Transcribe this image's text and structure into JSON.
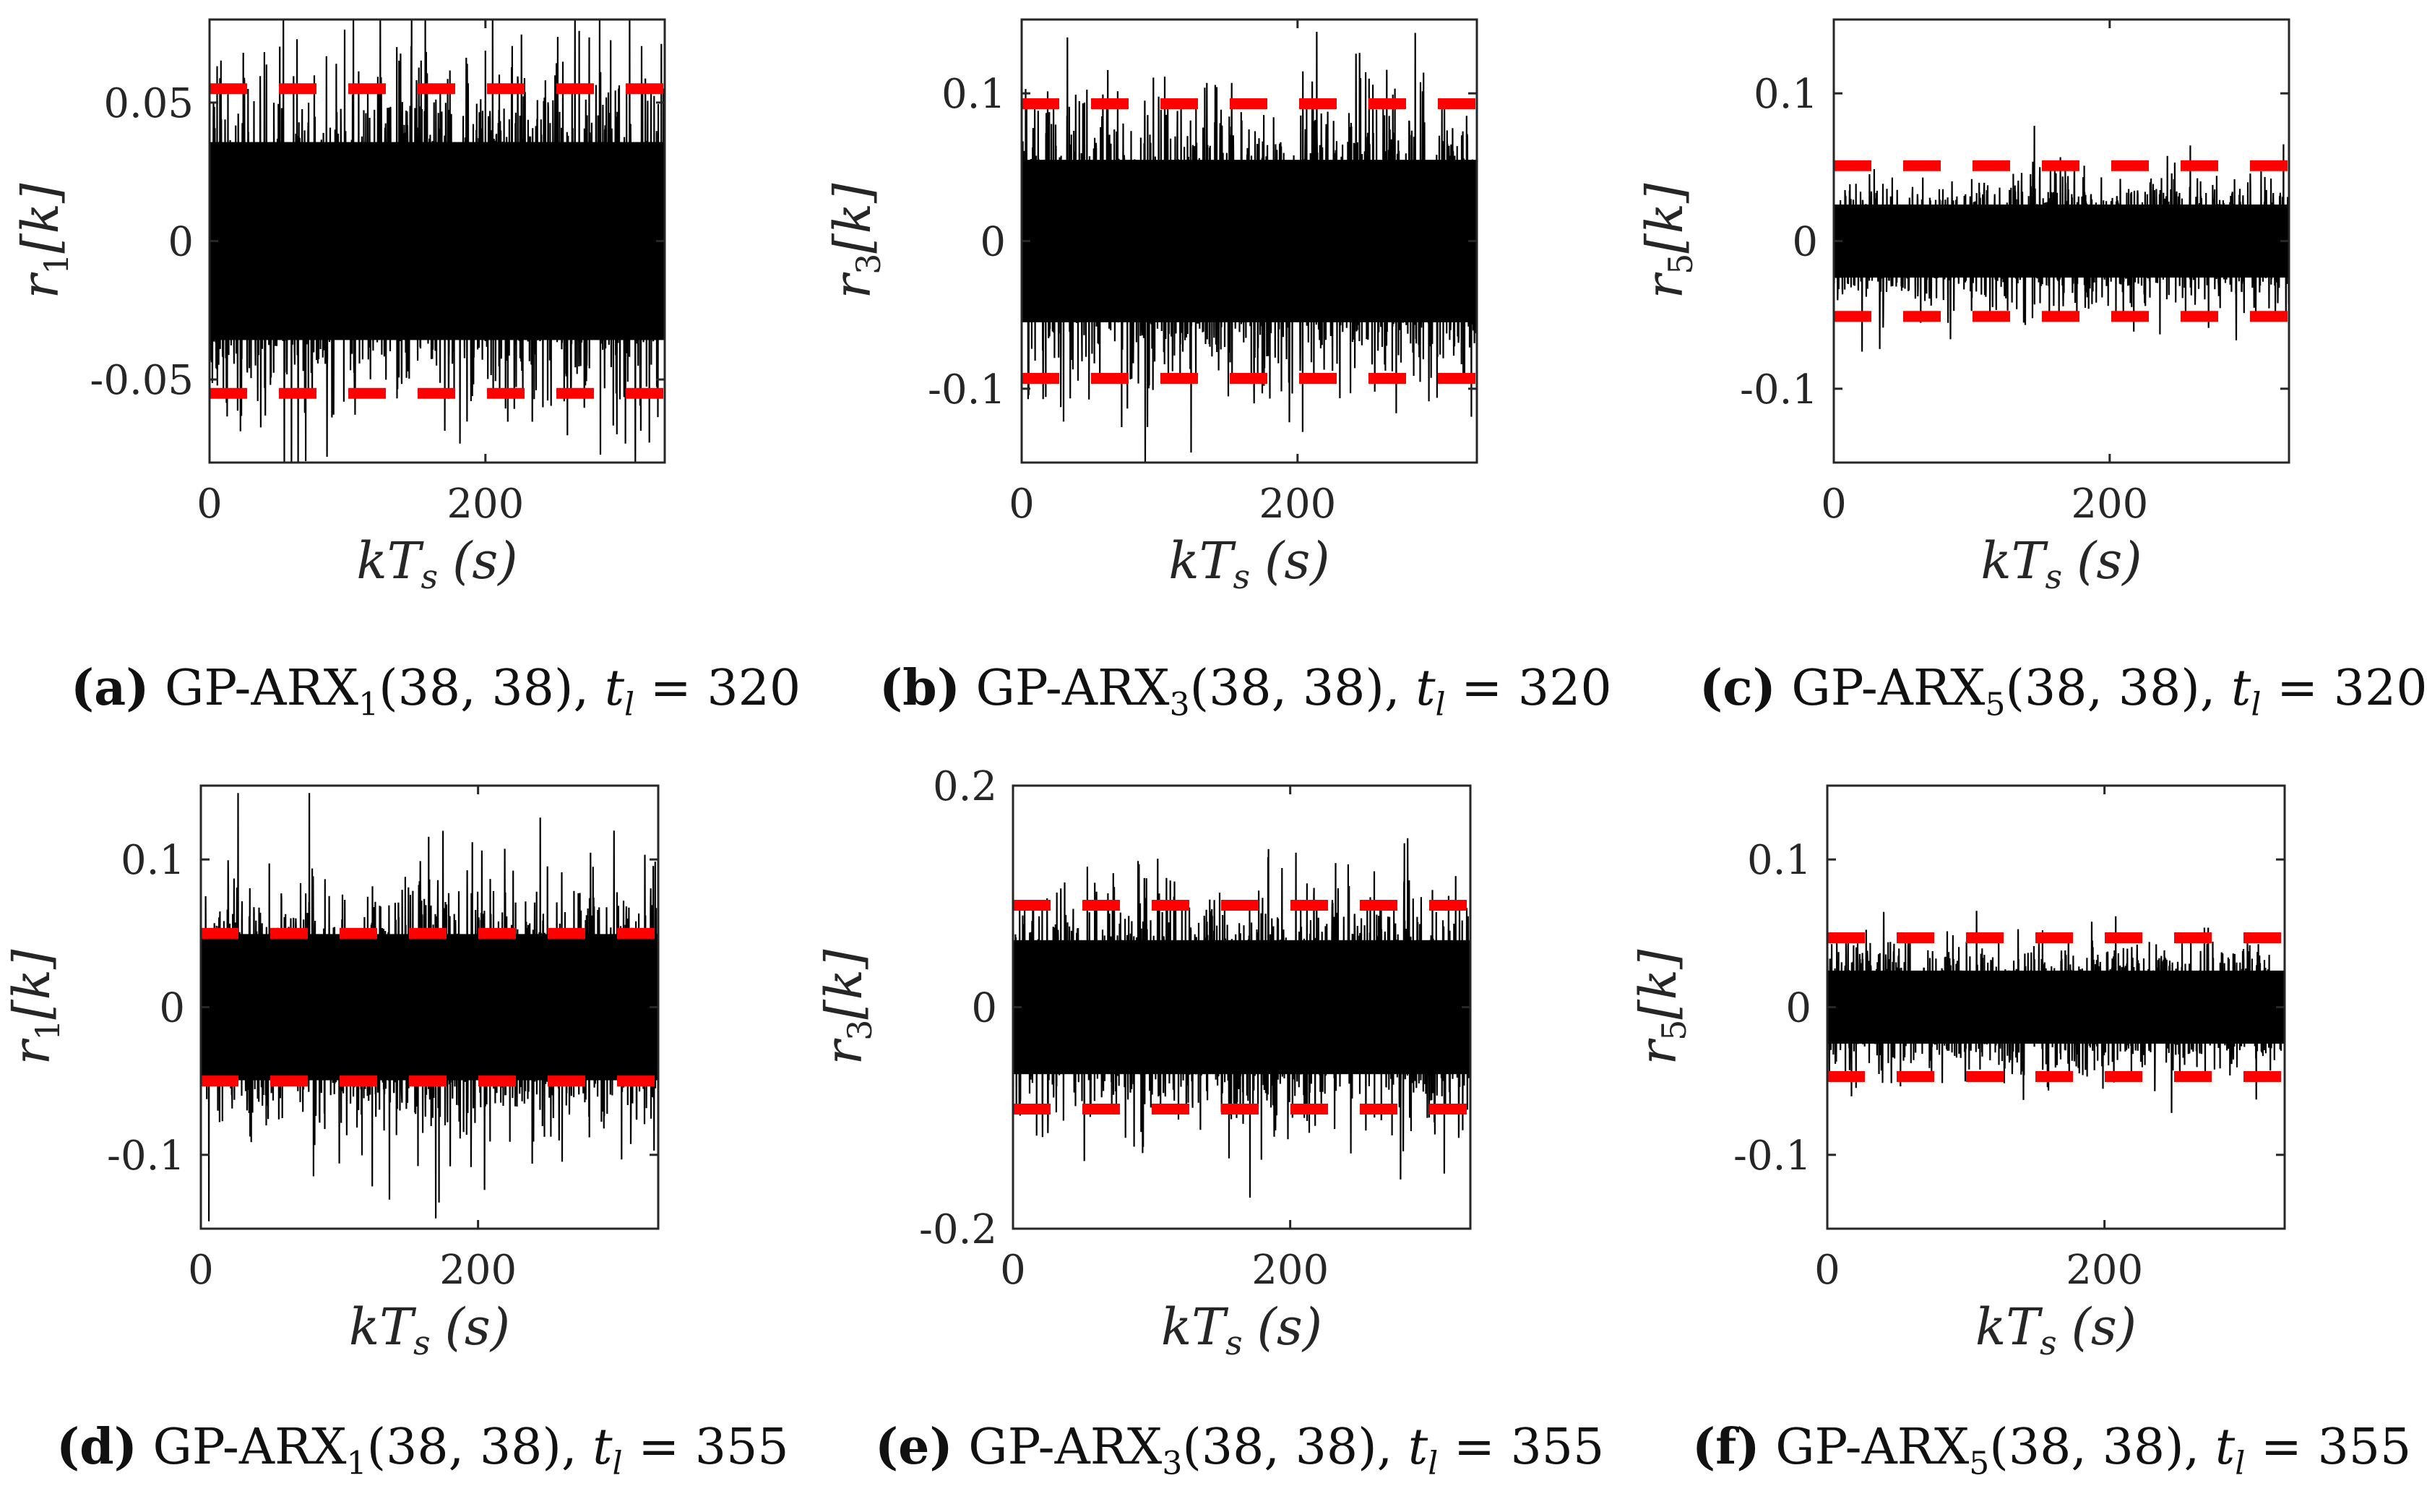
{
  "chart_data": [
    {
      "type": "line",
      "id": "a",
      "ylabel_var": "r",
      "ylabel_sub": "1",
      "ylabel_arg": "[k]",
      "xlabel_main": "kT",
      "xlabel_sub": "s",
      "xlabel_unit": "(s)",
      "xlim": [
        0,
        330
      ],
      "ylim": [
        -0.08,
        0.08
      ],
      "xticks": [
        0,
        200
      ],
      "xtick_labels": [
        "0",
        "200"
      ],
      "yticks": [
        0.05,
        0,
        -0.05
      ],
      "ytick_labels": [
        "0.05",
        "0",
        "-0.05"
      ],
      "series": [
        {
          "name": "residual",
          "color": "#000000",
          "band": 0.065,
          "peak": 0.082,
          "seed": 11
        },
        {
          "name": "threshold",
          "color": "#ff0000",
          "style": "dashed",
          "values": [
            0.055,
            -0.055
          ]
        }
      ],
      "caption": {
        "letter": "(a)",
        "model": "GP-ARX",
        "sub": "1",
        "args": "(38, 38),",
        "t": "t",
        "tsub": "l",
        "eq": "= 320"
      }
    },
    {
      "type": "line",
      "id": "b",
      "ylabel_var": "r",
      "ylabel_sub": "3",
      "ylabel_arg": "[k]",
      "xlabel_main": "kT",
      "xlabel_sub": "s",
      "xlabel_unit": "(s)",
      "xlim": [
        0,
        330
      ],
      "ylim": [
        -0.15,
        0.15
      ],
      "xticks": [
        0,
        200
      ],
      "xtick_labels": [
        "0",
        "200"
      ],
      "yticks": [
        0.1,
        0,
        -0.1
      ],
      "ytick_labels": [
        "0.1",
        "0",
        "-0.1"
      ],
      "series": [
        {
          "name": "residual",
          "color": "#000000",
          "band": 0.1,
          "peak": 0.15,
          "seed": 23
        },
        {
          "name": "threshold",
          "color": "#ff0000",
          "style": "dashed",
          "values": [
            0.093,
            -0.093
          ]
        }
      ],
      "caption": {
        "letter": "(b)",
        "model": "GP-ARX",
        "sub": "3",
        "args": "(38, 38),",
        "t": "t",
        "tsub": "l",
        "eq": "= 320"
      }
    },
    {
      "type": "line",
      "id": "c",
      "ylabel_var": "r",
      "ylabel_sub": "5",
      "ylabel_arg": "[k]",
      "xlabel_main": "kT",
      "xlabel_sub": "s",
      "xlabel_unit": "(s)",
      "xlim": [
        0,
        330
      ],
      "ylim": [
        -0.15,
        0.15
      ],
      "xticks": [
        0,
        200
      ],
      "xtick_labels": [
        "0",
        "200"
      ],
      "yticks": [
        0.1,
        0,
        -0.1
      ],
      "ytick_labels": [
        "0.1",
        "0",
        "-0.1"
      ],
      "series": [
        {
          "name": "residual",
          "color": "#000000",
          "band": 0.045,
          "peak": 0.1,
          "seed": 37
        },
        {
          "name": "threshold",
          "color": "#ff0000",
          "style": "dashed",
          "values": [
            0.051,
            -0.051
          ]
        }
      ],
      "caption": {
        "letter": "(c)",
        "model": "GP-ARX",
        "sub": "5",
        "args": "(38, 38),",
        "t": "t",
        "tsub": "l",
        "eq": "= 320"
      }
    },
    {
      "type": "line",
      "id": "d",
      "ylabel_var": "r",
      "ylabel_sub": "1",
      "ylabel_arg": "[k]",
      "xlabel_main": "kT",
      "xlabel_sub": "s",
      "xlabel_unit": "(s)",
      "xlim": [
        0,
        330
      ],
      "ylim": [
        -0.15,
        0.15
      ],
      "xticks": [
        0,
        200
      ],
      "xtick_labels": [
        "0",
        "200"
      ],
      "yticks": [
        0.1,
        0,
        -0.1
      ],
      "ytick_labels": [
        "0.1",
        "0",
        "-0.1"
      ],
      "series": [
        {
          "name": "residual",
          "color": "#000000",
          "band": 0.09,
          "peak": 0.145,
          "seed": 41
        },
        {
          "name": "threshold",
          "color": "#ff0000",
          "style": "dashed",
          "values": [
            0.05,
            -0.05
          ]
        }
      ],
      "caption": {
        "letter": "(d)",
        "model": "GP-ARX",
        "sub": "1",
        "args": "(38, 38),",
        "t": "t",
        "tsub": "l",
        "eq": "= 355"
      }
    },
    {
      "type": "line",
      "id": "e",
      "ylabel_var": "r",
      "ylabel_sub": "3",
      "ylabel_arg": "[k]",
      "xlabel_main": "kT",
      "xlabel_sub": "s",
      "xlabel_unit": "(s)",
      "xlim": [
        0,
        330
      ],
      "ylim": [
        -0.2,
        0.2
      ],
      "xticks": [
        0,
        200
      ],
      "xtick_labels": [
        "0",
        "200"
      ],
      "yticks": [
        0.2,
        0,
        -0.2
      ],
      "ytick_labels": [
        "0.2",
        "0",
        "-0.2"
      ],
      "series": [
        {
          "name": "residual",
          "color": "#000000",
          "band": 0.11,
          "peak": 0.195,
          "seed": 53
        },
        {
          "name": "threshold",
          "color": "#ff0000",
          "style": "dashed",
          "values": [
            0.092,
            -0.092
          ]
        }
      ],
      "caption": {
        "letter": "(e)",
        "model": "GP-ARX",
        "sub": "3",
        "args": "(38, 38),",
        "t": "t",
        "tsub": "l",
        "eq": "= 355"
      }
    },
    {
      "type": "line",
      "id": "f",
      "ylabel_var": "r",
      "ylabel_sub": "5",
      "ylabel_arg": "[k]",
      "xlabel_main": "kT",
      "xlabel_sub": "s",
      "xlabel_unit": "(s)",
      "xlim": [
        0,
        330
      ],
      "ylim": [
        -0.15,
        0.15
      ],
      "xticks": [
        0,
        200
      ],
      "xtick_labels": [
        "0",
        "200"
      ],
      "yticks": [
        0.1,
        0,
        -0.1
      ],
      "ytick_labels": [
        "0.1",
        "0",
        "-0.1"
      ],
      "series": [
        {
          "name": "residual",
          "color": "#000000",
          "band": 0.045,
          "peak": 0.105,
          "seed": 67
        },
        {
          "name": "threshold",
          "color": "#ff0000",
          "style": "dashed",
          "values": [
            0.047,
            -0.047
          ]
        }
      ],
      "caption": {
        "letter": "(f)",
        "model": "GP-ARX",
        "sub": "5",
        "args": "(38, 38),",
        "t": "t",
        "tsub": "l",
        "eq": "= 355"
      }
    }
  ]
}
